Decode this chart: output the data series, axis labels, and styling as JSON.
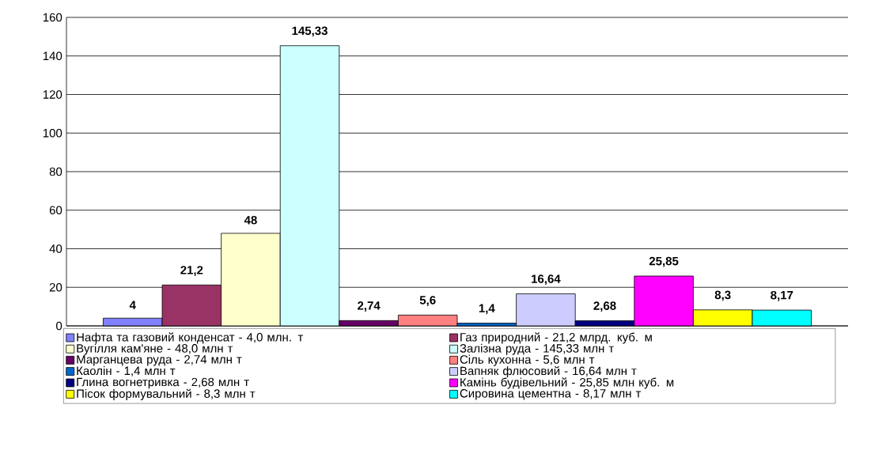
{
  "chart_data": {
    "type": "bar",
    "categories": [
      null
    ],
    "ylim": [
      0,
      160
    ],
    "yticks": [
      0,
      20,
      40,
      60,
      80,
      100,
      120,
      140,
      160
    ],
    "grid": "y",
    "legend": "bottom",
    "series": [
      {
        "name": "Нафта та газовий конденсат - 4,0 млн. т",
        "color": "#8080ff",
        "values": [
          4
        ],
        "value_labels": [
          "4"
        ]
      },
      {
        "name": "Газ природний - 21,2 млрд. куб. м",
        "color": "#993366",
        "values": [
          21.2
        ],
        "value_labels": [
          "21,2"
        ]
      },
      {
        "name": "Вугілля кам'яне -  48,0 млн т",
        "color": "#ffffcc",
        "values": [
          48
        ],
        "value_labels": [
          "48"
        ]
      },
      {
        "name": "Залізна руда - 145,33 млн т",
        "color": "#ccffff",
        "values": [
          145.33
        ],
        "value_labels": [
          "145,33"
        ]
      },
      {
        "name": "Марганцева руда - 2,74 млн т",
        "color": "#660066",
        "values": [
          2.74
        ],
        "value_labels": [
          "2,74"
        ]
      },
      {
        "name": "Сіль кухонна - 5,6 млн т",
        "color": "#ff8080",
        "values": [
          5.6
        ],
        "value_labels": [
          "5,6"
        ]
      },
      {
        "name": "Каолін - 1,4 млн т",
        "color": "#0066cc",
        "values": [
          1.4
        ],
        "value_labels": [
          "1,4"
        ]
      },
      {
        "name": "Вапняк флюсовий - 16,64 млн т",
        "color": "#ccccff",
        "values": [
          16.64
        ],
        "value_labels": [
          "16,64"
        ]
      },
      {
        "name": "Глина вогнетривка - 2,68 млн т",
        "color": "#000080",
        "values": [
          2.68
        ],
        "value_labels": [
          "2,68"
        ]
      },
      {
        "name": "Камінь будівельний -  25,85 млн куб. м",
        "color": "#ff00ff",
        "values": [
          25.85
        ],
        "value_labels": [
          "25,85"
        ]
      },
      {
        "name": "Пісок формувальний - 8,3 млн т",
        "color": "#ffff00",
        "values": [
          8.3
        ],
        "value_labels": [
          "8,3"
        ]
      },
      {
        "name": "Сировина цементна - 8,17 млн т",
        "color": "#00ffff",
        "values": [
          8.17
        ],
        "value_labels": [
          "8,17"
        ]
      }
    ]
  }
}
